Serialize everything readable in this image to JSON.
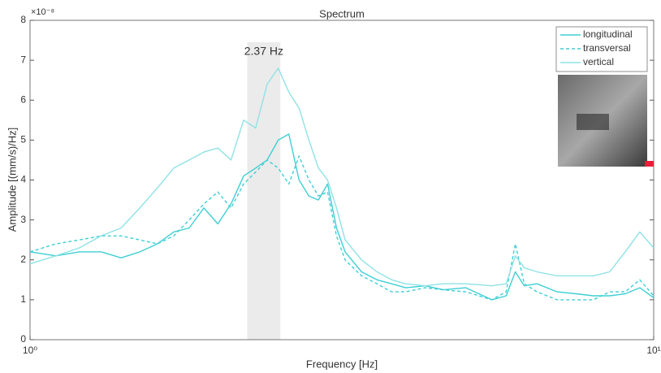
{
  "chart_data": {
    "type": "line",
    "title": "Spectrum",
    "x_label": "Frequency [Hz]",
    "y_label": "Amplitude [(mm/s)/Hz]",
    "y_multiplier": "×10⁻⁸",
    "xscale": "log",
    "xlim": [
      1,
      10
    ],
    "xticks": [
      {
        "value": 1,
        "label": "10⁰"
      },
      {
        "value": 10,
        "label": "10¹"
      }
    ],
    "ylim": [
      0,
      8
    ],
    "yticks": [
      0,
      1,
      2,
      3,
      4,
      5,
      6,
      7,
      8
    ],
    "highlight": {
      "xlim": [
        2.23,
        2.52
      ],
      "label": "2.37 Hz"
    },
    "legend": "top-right",
    "x": [
      1,
      1.1,
      1.2,
      1.3,
      1.4,
      1.5,
      1.6,
      1.7,
      1.8,
      1.9,
      2.0,
      2.1,
      2.2,
      2.3,
      2.4,
      2.5,
      2.6,
      2.7,
      2.8,
      2.9,
      3.0,
      3.1,
      3.2,
      3.4,
      3.6,
      3.8,
      4.0,
      4.3,
      4.6,
      5.0,
      5.5,
      5.8,
      6.0,
      6.2,
      6.5,
      7.0,
      7.5,
      8.0,
      8.5,
      9.0,
      9.5,
      10
    ],
    "series": [
      {
        "name": "longitudinal",
        "color": "#3fcfd4",
        "dashed": false,
        "values": [
          2.2,
          2.1,
          2.2,
          2.2,
          2.05,
          2.2,
          2.4,
          2.7,
          2.8,
          3.3,
          2.9,
          3.4,
          4.1,
          4.3,
          4.5,
          5.0,
          5.15,
          4.0,
          3.6,
          3.5,
          3.9,
          2.8,
          2.2,
          1.7,
          1.5,
          1.4,
          1.3,
          1.35,
          1.25,
          1.3,
          1.0,
          1.1,
          1.7,
          1.35,
          1.4,
          1.2,
          1.15,
          1.1,
          1.1,
          1.15,
          1.3,
          1.05
        ]
      },
      {
        "name": "transversal",
        "color": "#3fcfd4",
        "dashed": true,
        "values": [
          2.2,
          2.4,
          2.5,
          2.6,
          2.6,
          2.5,
          2.4,
          2.6,
          3.0,
          3.4,
          3.7,
          3.3,
          3.9,
          4.2,
          4.5,
          4.3,
          3.9,
          4.6,
          4.0,
          3.6,
          3.7,
          2.6,
          2.0,
          1.6,
          1.4,
          1.2,
          1.2,
          1.3,
          1.25,
          1.2,
          1.0,
          1.2,
          2.4,
          1.4,
          1.2,
          1.0,
          1.0,
          1.0,
          1.2,
          1.2,
          1.5,
          1.1
        ]
      },
      {
        "name": "vertical",
        "color": "#8fe2e5",
        "dashed": false,
        "values": [
          1.9,
          2.1,
          2.3,
          2.6,
          2.8,
          3.3,
          3.8,
          4.3,
          4.5,
          4.7,
          4.8,
          4.5,
          5.5,
          5.3,
          6.4,
          6.8,
          6.2,
          5.8,
          5.0,
          4.3,
          4.0,
          3.3,
          2.5,
          2.0,
          1.7,
          1.5,
          1.4,
          1.35,
          1.4,
          1.4,
          1.35,
          1.4,
          2.1,
          1.8,
          1.7,
          1.6,
          1.6,
          1.6,
          1.7,
          2.2,
          2.7,
          2.3
        ]
      }
    ]
  }
}
